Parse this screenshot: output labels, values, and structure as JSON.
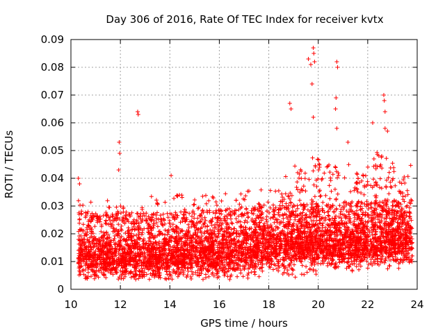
{
  "chart_data": {
    "type": "scatter",
    "title": "Day 306 of 2016, Rate Of TEC Index for receiver kvtx",
    "xlabel": "GPS time / hours",
    "ylabel": "ROTI / TECUs",
    "xlim": [
      10,
      24
    ],
    "ylim": [
      0,
      0.09
    ],
    "xticks": [
      "10",
      "12",
      "14",
      "16",
      "18",
      "20",
      "22",
      "24"
    ],
    "yticks": [
      "0",
      "0.01",
      "0.02",
      "0.03",
      "0.04",
      "0.05",
      "0.06",
      "0.07",
      "0.08",
      "0.09"
    ],
    "grid": true,
    "marker": "+",
    "marker_color": "#ff0000",
    "series": [
      {
        "name": "ROTI",
        "x_start": 10.3,
        "x_end": 23.8,
        "baseline_profile": [
          [
            10.3,
            0.012
          ],
          [
            12.0,
            0.011
          ],
          [
            14.0,
            0.012
          ],
          [
            16.0,
            0.013
          ],
          [
            18.0,
            0.014
          ],
          [
            20.0,
            0.015
          ],
          [
            22.0,
            0.016
          ],
          [
            23.8,
            0.017
          ]
        ],
        "notable_points": [
          [
            10.3,
            0.04
          ],
          [
            10.35,
            0.038
          ],
          [
            11.95,
            0.053
          ],
          [
            11.97,
            0.049
          ],
          [
            11.93,
            0.043
          ],
          [
            12.7,
            0.064
          ],
          [
            12.72,
            0.063
          ],
          [
            14.05,
            0.041
          ],
          [
            18.85,
            0.067
          ],
          [
            18.9,
            0.065
          ],
          [
            19.6,
            0.083
          ],
          [
            19.7,
            0.081
          ],
          [
            19.75,
            0.074
          ],
          [
            19.8,
            0.087
          ],
          [
            19.82,
            0.085
          ],
          [
            19.85,
            0.082
          ],
          [
            19.8,
            0.062
          ],
          [
            20.75,
            0.082
          ],
          [
            20.78,
            0.08
          ],
          [
            20.72,
            0.069
          ],
          [
            20.7,
            0.065
          ],
          [
            20.75,
            0.058
          ],
          [
            21.2,
            0.053
          ],
          [
            22.65,
            0.07
          ],
          [
            22.67,
            0.068
          ],
          [
            22.7,
            0.064
          ],
          [
            22.7,
            0.058
          ],
          [
            22.2,
            0.06
          ],
          [
            22.8,
            0.057
          ],
          [
            22.25,
            0.047
          ]
        ]
      }
    ]
  }
}
